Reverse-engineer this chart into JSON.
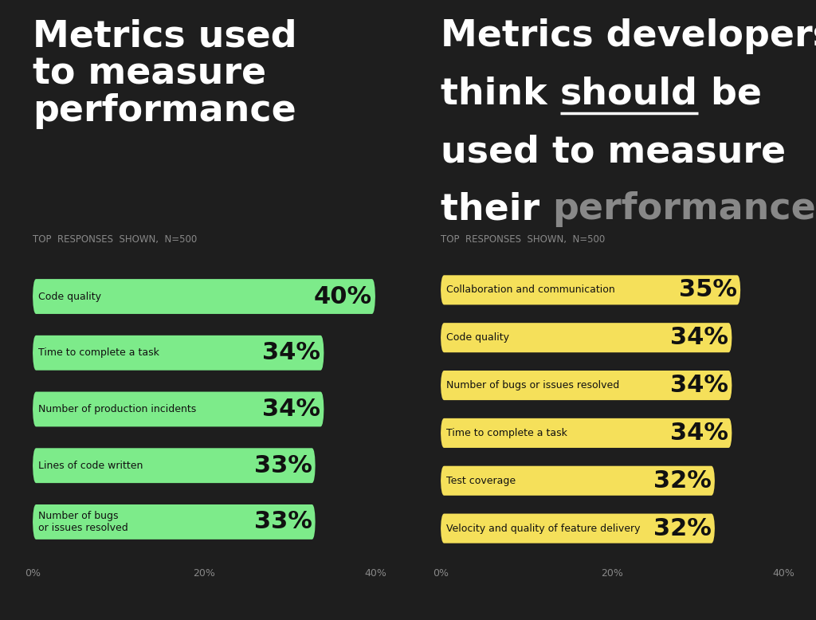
{
  "background_color": "#1e1e1e",
  "left_panel": {
    "title_lines": [
      "Metrics used",
      "to measure",
      "performance"
    ],
    "subtitle": "TOP  RESPONSES  SHOWN,  N=500",
    "bar_color": "#7deb8a",
    "categories": [
      "Code quality",
      "Time to complete a task",
      "Number of production incidents",
      "Lines of code written",
      "Number of bugs\nor issues resolved"
    ],
    "values": [
      40,
      34,
      34,
      33,
      33
    ],
    "xlim": [
      0,
      40
    ]
  },
  "right_panel": {
    "subtitle": "TOP  RESPONSES  SHOWN,  N=500",
    "bar_color": "#f5e05a",
    "categories": [
      "Collaboration and communication",
      "Code quality",
      "Number of bugs or issues resolved",
      "Time to complete a task",
      "Test coverage",
      "Velocity and quality of feature delivery"
    ],
    "values": [
      35,
      34,
      34,
      34,
      32,
      32
    ],
    "xlim": [
      0,
      40
    ]
  },
  "tick_color": "#888888",
  "label_fontsize": 9,
  "value_fontsize": 22,
  "title_fontsize": 33,
  "subtitle_fontsize": 8.5,
  "bar_height": 0.62,
  "bar_text_color": "#111111",
  "white": "#ffffff",
  "gray_word_color": "#888888"
}
